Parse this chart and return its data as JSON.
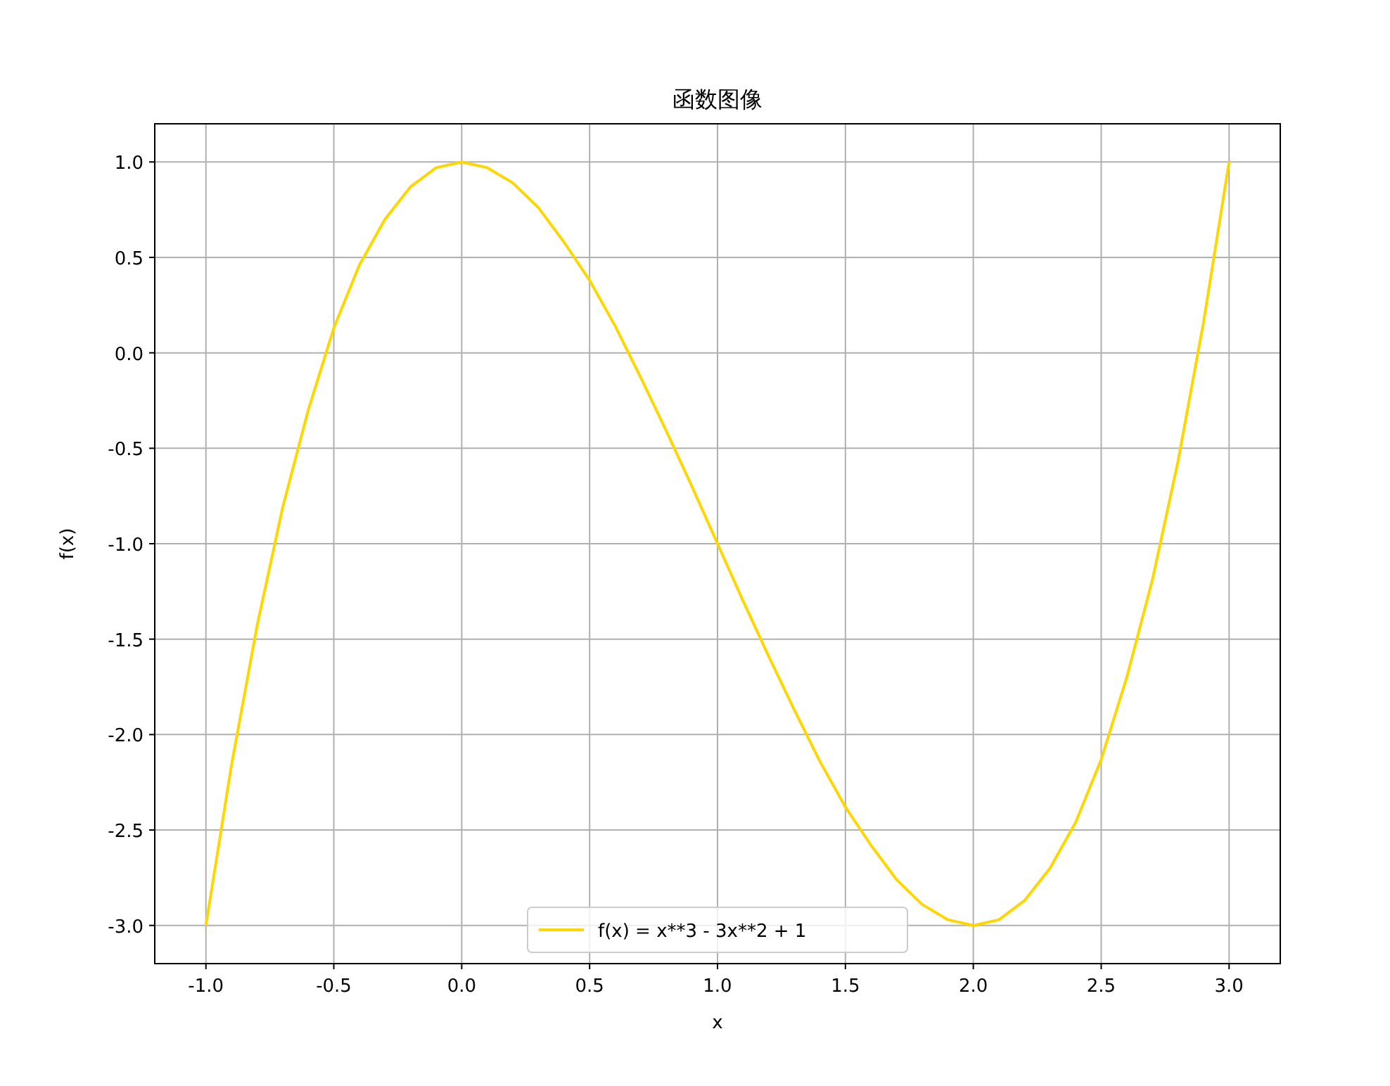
{
  "chart_data": {
    "type": "line",
    "title": "函数图像",
    "xlabel": "x",
    "ylabel": "f(x)",
    "x": [
      -1.0,
      -0.9,
      -0.8,
      -0.7,
      -0.6,
      -0.5,
      -0.4,
      -0.3,
      -0.2,
      -0.1,
      0.0,
      0.1,
      0.2,
      0.3,
      0.4,
      0.5,
      0.6,
      0.7,
      0.8,
      0.9,
      1.0,
      1.1,
      1.2,
      1.3,
      1.4,
      1.5,
      1.6,
      1.7,
      1.8,
      1.9,
      2.0,
      2.1,
      2.2,
      2.3,
      2.4,
      2.5,
      2.6,
      2.7,
      2.8,
      2.9,
      3.0
    ],
    "series": [
      {
        "name": "f(x) = x**3 - 3x**2 + 1",
        "color": "#ffd700",
        "values": [
          -3.0,
          -2.16,
          -1.43,
          -0.81,
          -0.3,
          0.13,
          0.46,
          0.7,
          0.87,
          0.97,
          1.0,
          0.97,
          0.89,
          0.76,
          0.58,
          0.38,
          0.14,
          -0.13,
          -0.41,
          -0.7,
          -1.0,
          -1.3,
          -1.59,
          -1.87,
          -2.14,
          -2.38,
          -2.58,
          -2.76,
          -2.89,
          -2.97,
          -3.0,
          -2.97,
          -2.87,
          -2.7,
          -2.46,
          -2.13,
          -1.7,
          -1.19,
          -0.57,
          0.16,
          1.0
        ]
      }
    ],
    "xlim": [
      -1.2,
      3.2
    ],
    "ylim": [
      -3.2,
      1.2
    ],
    "xticks": [
      {
        "value": -1,
        "label": "-1.0"
      },
      {
        "value": -0.5,
        "label": "-0.5"
      },
      {
        "value": 0,
        "label": "0.0"
      },
      {
        "value": 0.5,
        "label": "0.5"
      },
      {
        "value": 1,
        "label": "1.0"
      },
      {
        "value": 1.5,
        "label": "1.5"
      },
      {
        "value": 2,
        "label": "2.0"
      },
      {
        "value": 2.5,
        "label": "2.5"
      },
      {
        "value": 3,
        "label": "3.0"
      }
    ],
    "yticks": [
      {
        "value": -3,
        "label": "-3.0"
      },
      {
        "value": -2.5,
        "label": "-2.5"
      },
      {
        "value": -2,
        "label": "-2.0"
      },
      {
        "value": -1.5,
        "label": "-1.5"
      },
      {
        "value": -1,
        "label": "-1.0"
      },
      {
        "value": -0.5,
        "label": "-0.5"
      },
      {
        "value": 0,
        "label": "0.0"
      },
      {
        "value": 0.5,
        "label": "0.5"
      },
      {
        "value": 1,
        "label": "1.0"
      }
    ],
    "grid": true,
    "legend": "bottom"
  }
}
